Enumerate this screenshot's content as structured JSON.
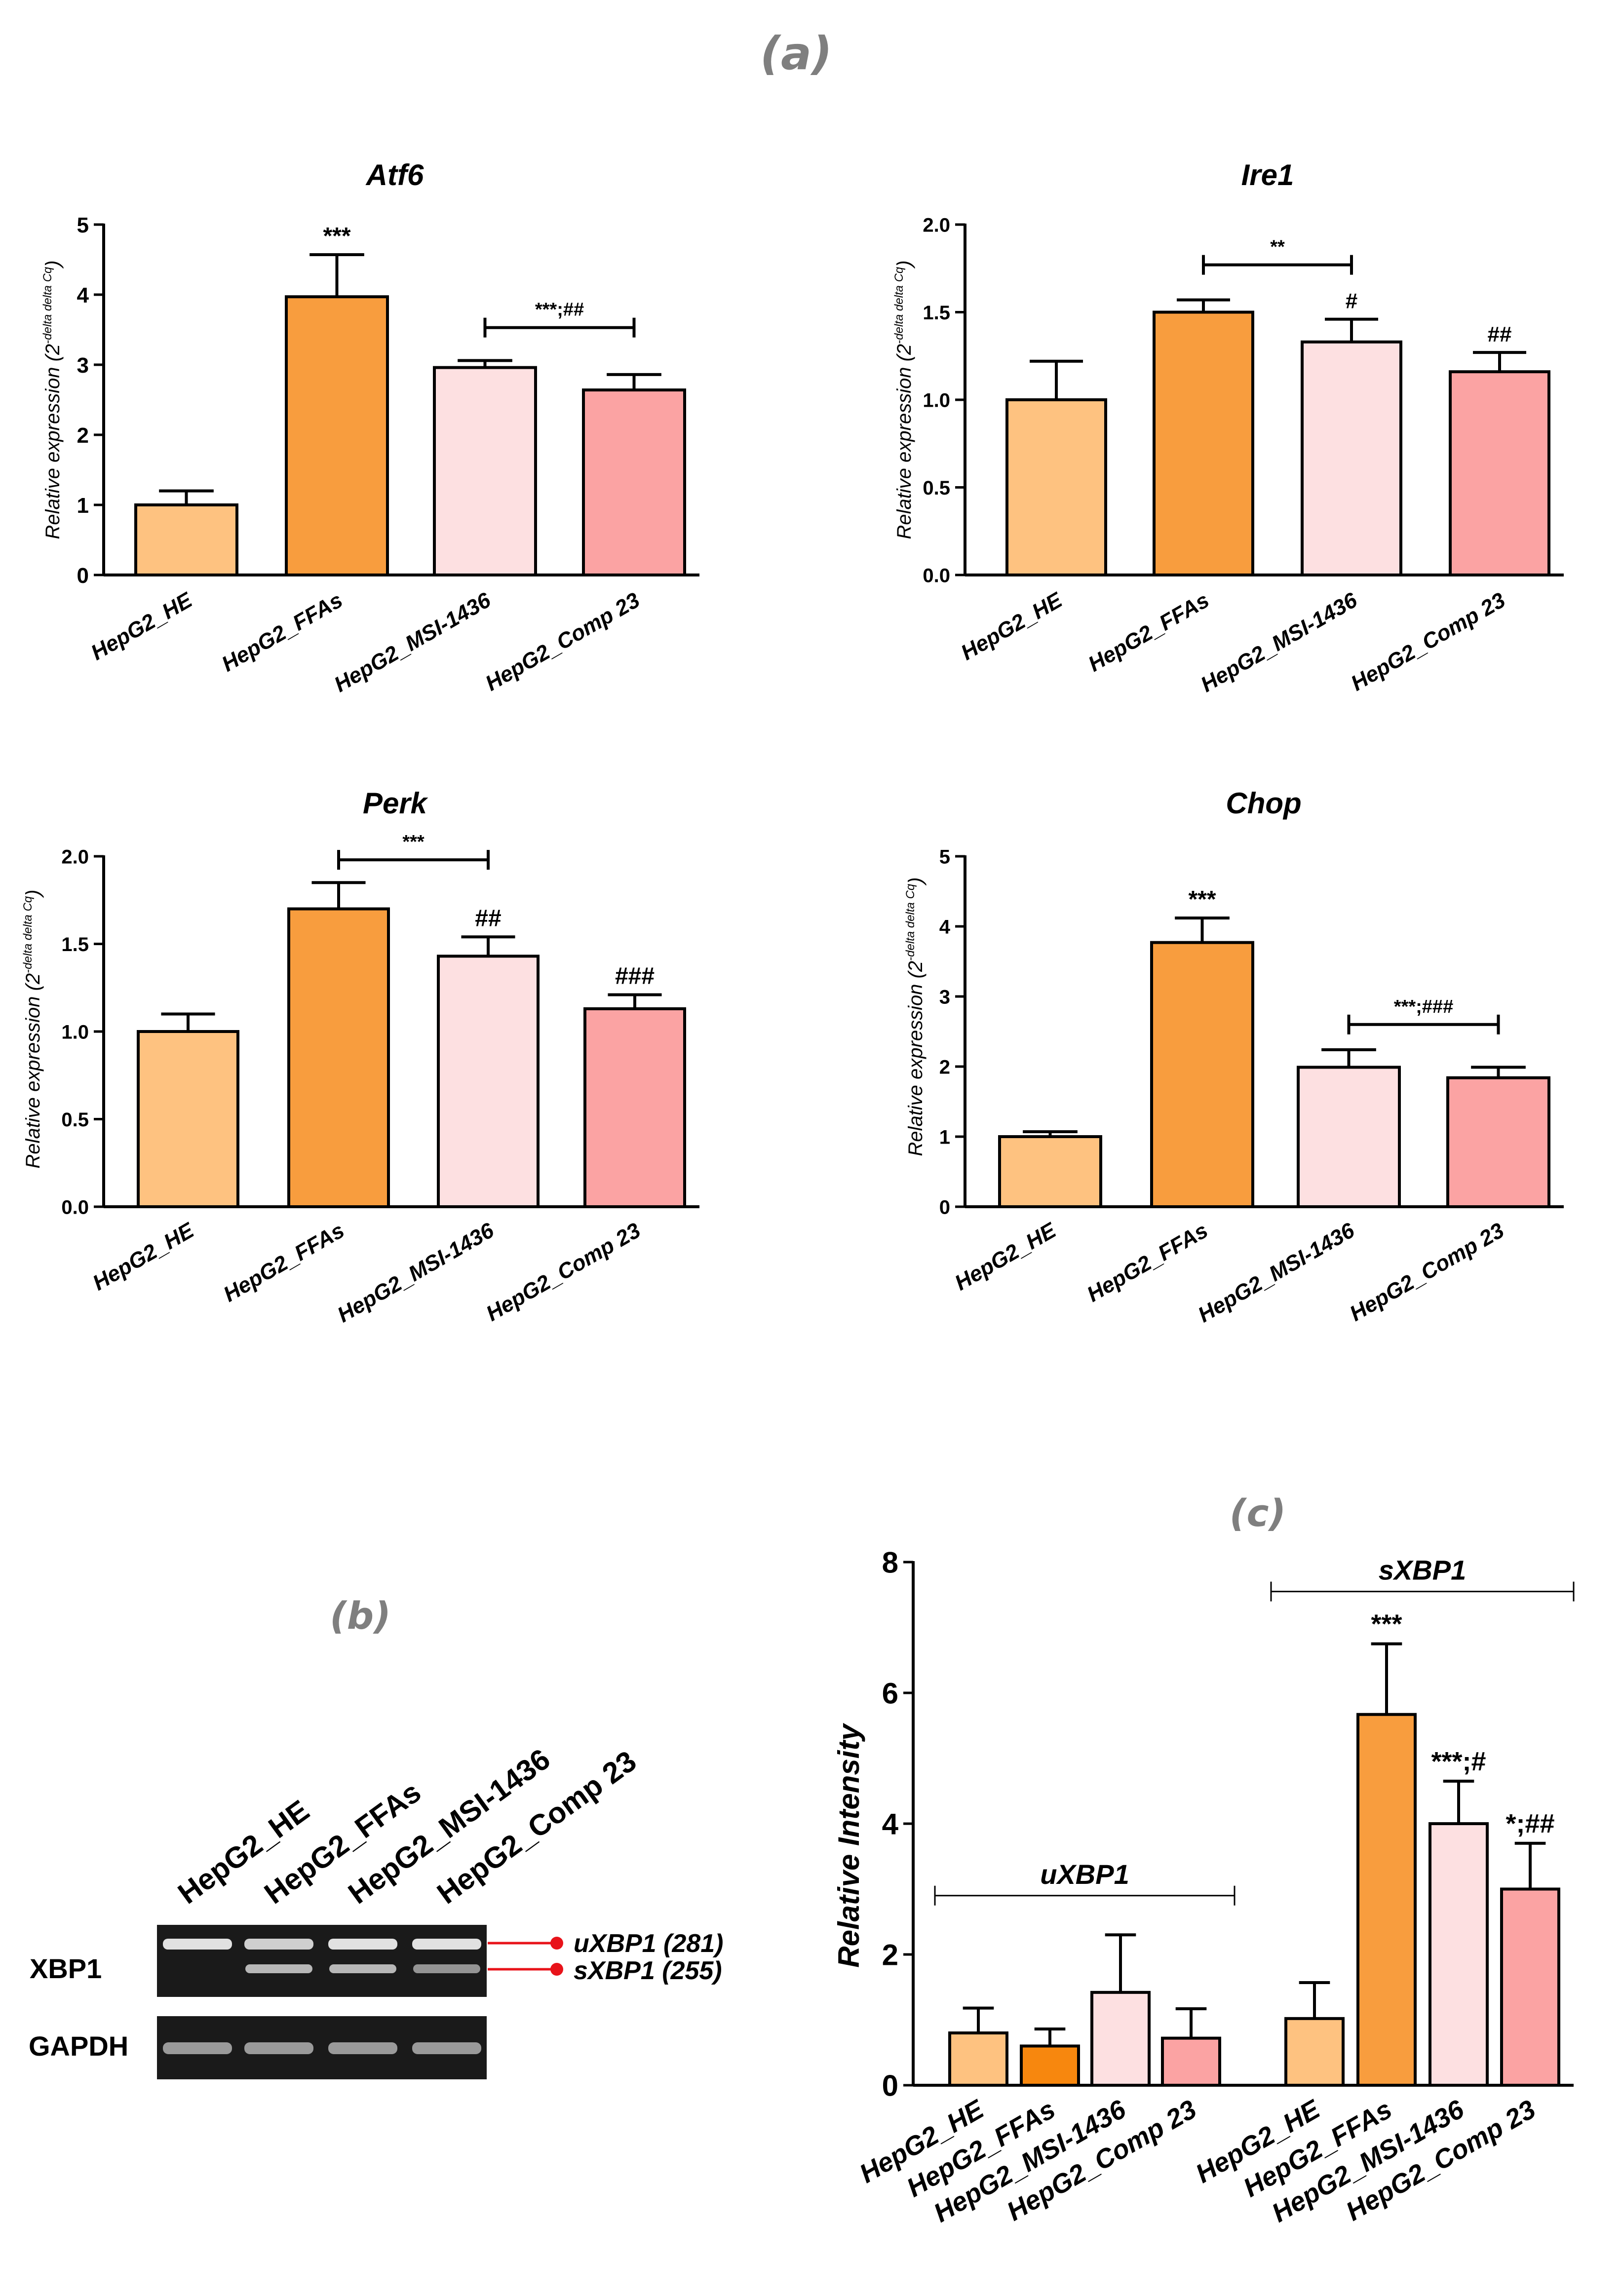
{
  "panel_labels": {
    "a": "(a)",
    "b": "(b)",
    "c": "(c)"
  },
  "colors": {
    "HE": "#fec280",
    "FFAs": "#f89d3e",
    "FFAs_c": "#f7870e",
    "MSI": "#fde0e1",
    "Comp": "#fba3a3",
    "marker": "#e8131a"
  },
  "chart_data": [
    {
      "id": "atf6",
      "type": "bar",
      "title": "Atf6",
      "ylabel": "Relative expression (2",
      "ylabel_sup": "-delta delta Cq",
      "ylabel_close": ")",
      "categories": [
        "HepG2_HE",
        "HepG2_FFAs",
        "HepG2_MSI-1436",
        "HepG2_Comp 23"
      ],
      "values": [
        1.0,
        3.97,
        2.96,
        2.64
      ],
      "errors": [
        0.2,
        0.6,
        0.1,
        0.22
      ],
      "ylim": [
        0,
        5
      ],
      "yticks": [
        "0",
        "1",
        "2",
        "3",
        "4",
        "5"
      ],
      "annotations": [
        {
          "bar": 1,
          "text": "***"
        }
      ],
      "brackets": [
        {
          "from": 2,
          "to": 3,
          "level": 3.53,
          "text": "***;##"
        }
      ]
    },
    {
      "id": "ire1",
      "type": "bar",
      "title": "Ire1",
      "ylabel": "Relative expression (2",
      "ylabel_sup": "-delta delta Cq",
      "ylabel_close": ")",
      "categories": [
        "HepG2_HE",
        "HepG2_FFAs",
        "HepG2_MSI-1436",
        "HepG2_Comp 23"
      ],
      "values": [
        1.0,
        1.5,
        1.33,
        1.16
      ],
      "errors": [
        0.22,
        0.07,
        0.13,
        0.11
      ],
      "ylim": [
        0,
        2.0
      ],
      "yticks": [
        "0.0",
        "0.5",
        "1.0",
        "1.5",
        "2.0"
      ],
      "annotations": [
        {
          "bar": 2,
          "text": "#"
        },
        {
          "bar": 3,
          "text": "##"
        }
      ],
      "brackets": [
        {
          "from": 1,
          "to": 2,
          "level": 1.77,
          "text": "**"
        }
      ]
    },
    {
      "id": "perk",
      "type": "bar",
      "title": "Perk",
      "ylabel": "Relative expression (2",
      "ylabel_sup": "-delta delta Cq",
      "ylabel_close": ")",
      "categories": [
        "HepG2_HE",
        "HepG2_FFAs",
        "HepG2_MSI-1436",
        "HepG2_Comp 23"
      ],
      "values": [
        1.0,
        1.7,
        1.43,
        1.13
      ],
      "errors": [
        0.1,
        0.15,
        0.11,
        0.08
      ],
      "ylim": [
        0,
        2.0
      ],
      "yticks": [
        "0.0",
        "0.5",
        "1.0",
        "1.5",
        "2.0"
      ],
      "annotations": [
        {
          "bar": 2,
          "text": "##"
        },
        {
          "bar": 3,
          "text": "###"
        }
      ],
      "brackets": [
        {
          "from": 1,
          "to": 2,
          "level": 1.98,
          "text": "***"
        }
      ]
    },
    {
      "id": "chop",
      "type": "bar",
      "title": "Chop",
      "ylabel": "Relative expression (2",
      "ylabel_sup": "-delta delta Cq",
      "ylabel_close": ")",
      "categories": [
        "HepG2_HE",
        "HepG2_FFAs",
        "HepG2_MSI-1436",
        "HepG2_Comp 23"
      ],
      "values": [
        1.0,
        3.77,
        1.99,
        1.84
      ],
      "errors": [
        0.07,
        0.35,
        0.25,
        0.15
      ],
      "ylim": [
        0,
        5
      ],
      "yticks": [
        "0",
        "1",
        "2",
        "3",
        "4",
        "5"
      ],
      "annotations": [
        {
          "bar": 1,
          "text": "***"
        }
      ],
      "brackets": [
        {
          "from": 2,
          "to": 3,
          "level": 2.6,
          "text": "***;###"
        }
      ]
    },
    {
      "id": "xbp1",
      "type": "bar",
      "title": "",
      "ylabel": "Relative Intensity",
      "groups": [
        "uXBP1",
        "sXBP1"
      ],
      "categories": [
        "HepG2_HE",
        "HepG2_FFAs",
        "HepG2_MSI-1436",
        "HepG2_Comp 23",
        "HepG2_HE",
        "HepG2_FFAs",
        "HepG2_MSI-1436",
        "HepG2_Comp 23"
      ],
      "values": [
        0.8,
        0.6,
        1.42,
        0.72,
        1.02,
        5.67,
        4.0,
        3.0
      ],
      "errors": [
        0.38,
        0.26,
        0.88,
        0.45,
        0.55,
        1.08,
        0.65,
        0.7
      ],
      "ylim": [
        0,
        8
      ],
      "yticks": [
        "0",
        "2",
        "4",
        "6",
        "8"
      ],
      "annotations": [
        {
          "bar": 5,
          "text": "***"
        },
        {
          "bar": 6,
          "text": "***;#"
        },
        {
          "bar": 7,
          "text": "*;##"
        }
      ],
      "brackets": [
        {
          "from": 0,
          "to": 3,
          "level": 2.9,
          "text": "uXBP1"
        },
        {
          "from": 4,
          "to": 7,
          "level": 7.55,
          "text": "sXBP1"
        }
      ]
    }
  ],
  "gel": {
    "lanes": [
      "HepG2_HE",
      "HepG2_FFAs",
      "HepG2_MSI-1436",
      "HepG2_Comp 23"
    ],
    "rows": [
      "XBP1",
      "GAPDH"
    ],
    "markers": [
      "uXBP1 (281)",
      "sXBP1 (255)"
    ]
  }
}
